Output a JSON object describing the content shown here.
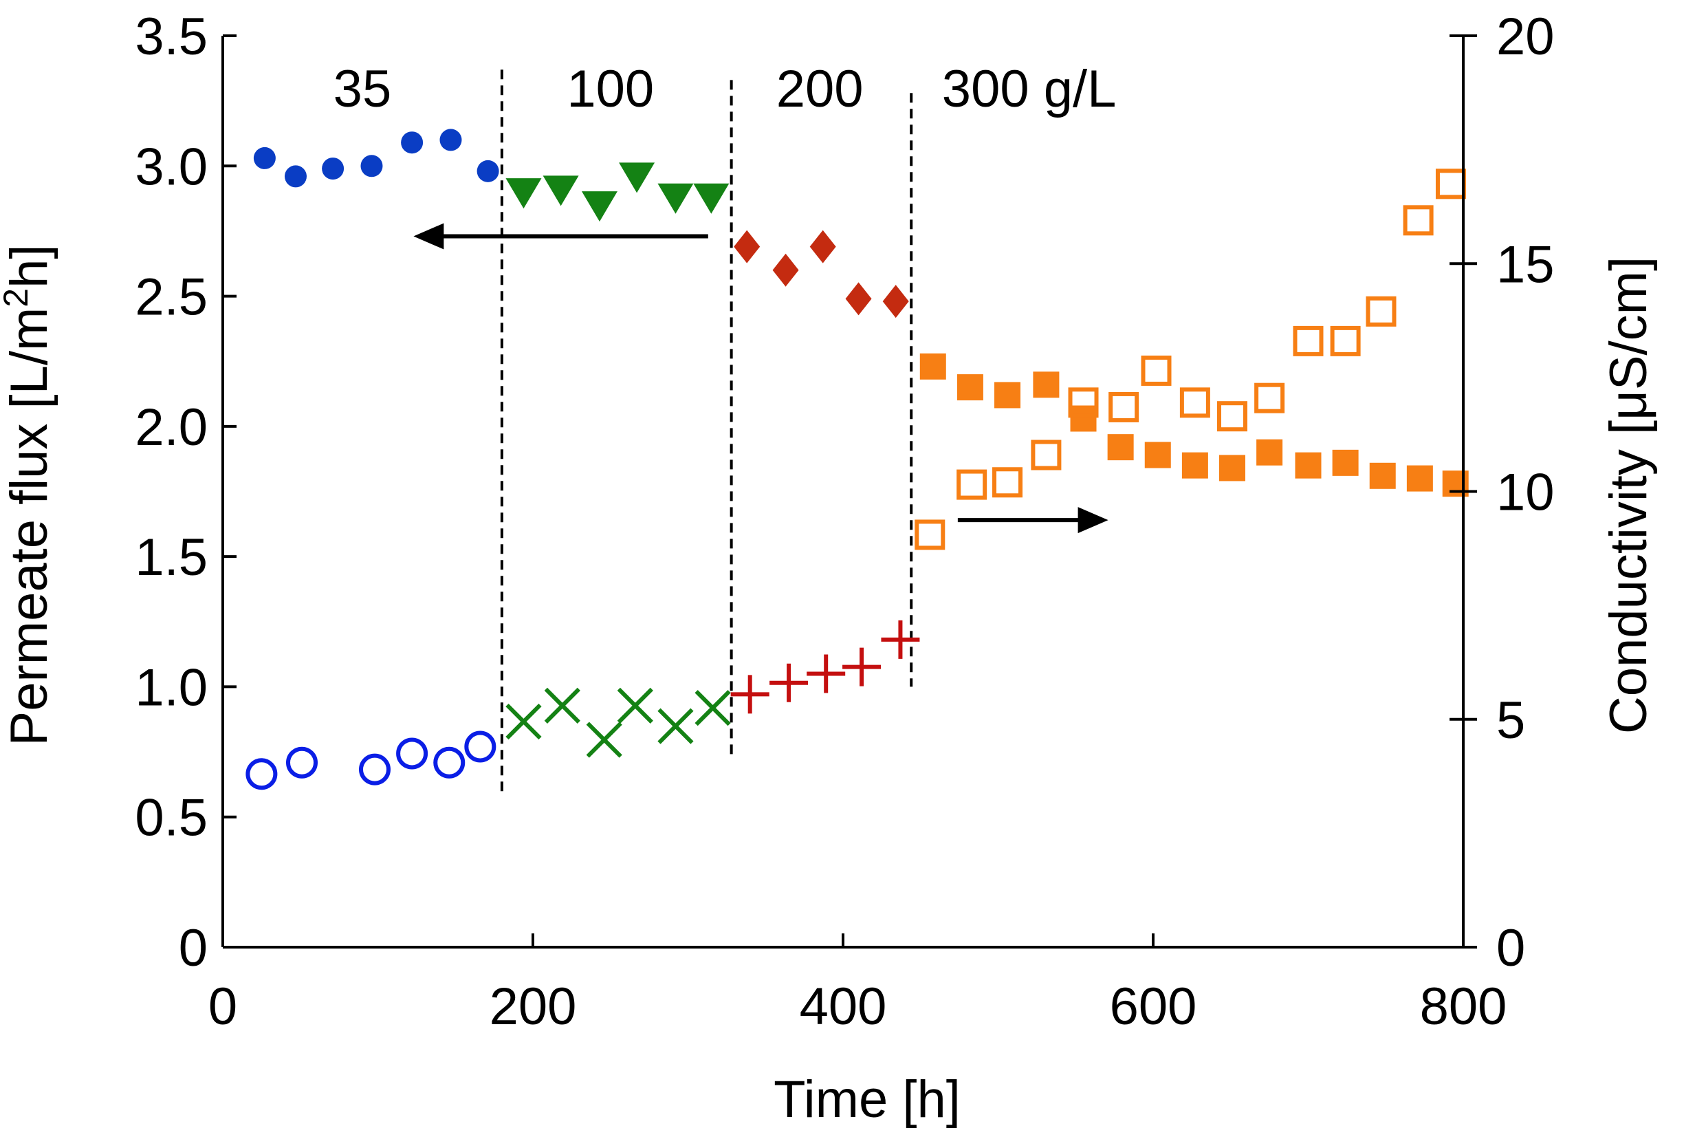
{
  "chart_data": {
    "type": "scatter",
    "title": "",
    "xlabel": "Time [h]",
    "ylabel": "Permeate flux [L/m2h]",
    "ylabel_parts": [
      "Permeate flux [L/m",
      "2",
      "h]"
    ],
    "y2label": "Conductivity [μS/cm]",
    "xlim": [
      0,
      800
    ],
    "ylim": [
      0,
      3.5
    ],
    "y2lim": [
      0,
      20
    ],
    "xticks": [
      "0",
      "200",
      "400",
      "600",
      "800"
    ],
    "yticks": [
      "0",
      "0.5",
      "1.0",
      "1.5",
      "2.0",
      "2.5",
      "3.0",
      "3.5"
    ],
    "y2ticks": [
      "0",
      "5",
      "10",
      "15",
      "20"
    ],
    "grid": false,
    "regions": [
      {
        "label": "35",
        "x": 90
      },
      {
        "label": "100",
        "x": 250
      },
      {
        "label": "200",
        "x": 385
      },
      {
        "label": "300 g/L",
        "x": 520
      }
    ],
    "dividers": [
      {
        "x": 180,
        "y_from": 0.58,
        "y_to": 3.37
      },
      {
        "x": 328,
        "y_from": 0.72,
        "y_to": 3.33
      },
      {
        "x": 444,
        "y_from": 1.0,
        "y_to": 3.28
      }
    ],
    "arrows": [
      {
        "direction": "left",
        "x_from": 313,
        "x_to": 123,
        "y": 2.73
      },
      {
        "direction": "right",
        "x_from": 474,
        "x_to": 571,
        "y": 1.64
      }
    ],
    "series": [
      {
        "name": "Flux 35 g/L",
        "axis": "left",
        "marker": "circle-filled",
        "color": "#0a3dc4",
        "x": [
          27,
          47,
          71,
          96,
          122,
          147,
          171
        ],
        "y": [
          3.03,
          2.96,
          2.99,
          3.0,
          3.09,
          3.1,
          2.98
        ]
      },
      {
        "name": "Flux 100 g/L",
        "axis": "left",
        "marker": "triangle-down-filled",
        "color": "#148214",
        "x": [
          194,
          218,
          243,
          267,
          292,
          315
        ],
        "y": [
          2.9,
          2.91,
          2.85,
          2.96,
          2.88,
          2.88
        ]
      },
      {
        "name": "Flux 200 g/L",
        "axis": "left",
        "marker": "diamond-filled",
        "color": "#c42b10",
        "x": [
          338,
          363,
          387,
          410,
          434
        ],
        "y": [
          2.69,
          2.6,
          2.69,
          2.49,
          2.48
        ]
      },
      {
        "name": "Flux 300 g/L",
        "axis": "left",
        "marker": "square-filled",
        "color": "#f77f14",
        "x": [
          458,
          482,
          506,
          531,
          555,
          579,
          603,
          627,
          651,
          675,
          700,
          724,
          748,
          772,
          795
        ],
        "y": [
          2.23,
          2.15,
          2.12,
          2.16,
          2.03,
          1.92,
          1.89,
          1.85,
          1.84,
          1.9,
          1.85,
          1.86,
          1.81,
          1.8,
          1.78
        ]
      },
      {
        "name": "Conductivity 35 g/L",
        "axis": "right",
        "marker": "circle-open",
        "color": "#0a1ee6",
        "x": [
          25,
          51,
          98,
          122,
          146,
          166
        ],
        "y": [
          3.8,
          4.05,
          3.9,
          4.25,
          4.05,
          4.4
        ]
      },
      {
        "name": "Conductivity 100 g/L",
        "axis": "right",
        "marker": "x",
        "color": "#148214",
        "x": [
          194,
          219,
          246,
          266,
          292,
          316
        ],
        "y": [
          4.95,
          5.3,
          4.55,
          5.3,
          4.85,
          5.25
        ]
      },
      {
        "name": "Conductivity 200 g/L",
        "axis": "right",
        "marker": "plus",
        "color": "#c40f0f",
        "x": [
          340,
          365,
          389,
          412,
          437
        ],
        "y": [
          5.55,
          5.8,
          6.0,
          6.15,
          6.75
        ]
      },
      {
        "name": "Conductivity 300 g/L",
        "axis": "right",
        "marker": "square-open",
        "color": "#f77f14",
        "x": [
          456,
          483,
          506,
          531,
          555,
          581,
          602,
          627,
          651,
          675,
          700,
          724,
          747,
          771,
          792
        ],
        "y": [
          9.05,
          10.15,
          10.2,
          10.8,
          11.95,
          11.85,
          12.65,
          11.95,
          11.65,
          12.05,
          13.3,
          13.3,
          13.95,
          15.95,
          16.75
        ]
      }
    ]
  }
}
